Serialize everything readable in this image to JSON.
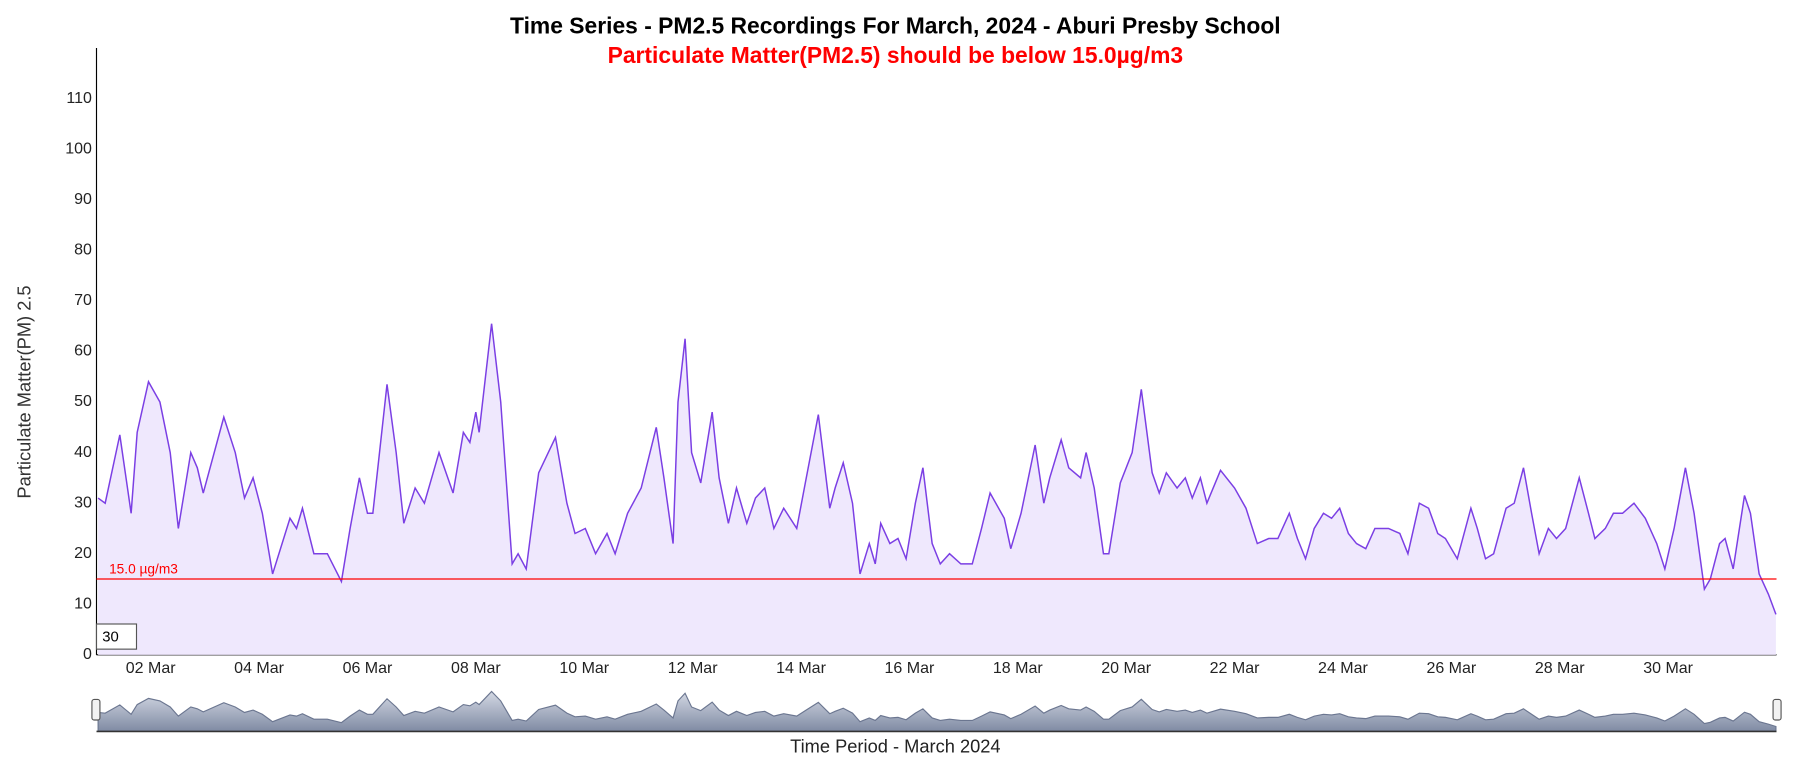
{
  "chart_data": {
    "type": "line",
    "title": "Time Series - PM2.5 Recordings For March, 2024 - Aburi Presby School",
    "subtitle": "Particulate Matter(PM2.5) should be below 15.0µg/m3",
    "ylabel": "Particulate Matter(PM) 2.5",
    "xlabel": "Time Period - March 2024",
    "color": "#7b3fe4",
    "fill": "#efe8fd",
    "grid": false,
    "threshold": {
      "value": 15,
      "label": "15.0 µg/m3",
      "color": "#ff0000"
    },
    "input_value": 30,
    "xlim": [
      1,
      32
    ],
    "xticks": [
      {
        "value": 2,
        "label": "02 Mar"
      },
      {
        "value": 4,
        "label": "04 Mar"
      },
      {
        "value": 6,
        "label": "06 Mar"
      },
      {
        "value": 8,
        "label": "08 Mar"
      },
      {
        "value": 10,
        "label": "10 Mar"
      },
      {
        "value": 12,
        "label": "12 Mar"
      },
      {
        "value": 14,
        "label": "14 Mar"
      },
      {
        "value": 16,
        "label": "16 Mar"
      },
      {
        "value": 18,
        "label": "18 Mar"
      },
      {
        "value": 20,
        "label": "20 Mar"
      },
      {
        "value": 22,
        "label": "22 Mar"
      },
      {
        "value": 24,
        "label": "24 Mar"
      },
      {
        "value": 26,
        "label": "26 Mar"
      },
      {
        "value": 28,
        "label": "28 Mar"
      },
      {
        "value": 30,
        "label": "30 Mar"
      }
    ],
    "ylim": [
      0,
      120
    ],
    "yticks": [
      0,
      10,
      20,
      30,
      40,
      50,
      60,
      70,
      80,
      90,
      100,
      110
    ],
    "x": [
      1.03,
      1.16,
      1.43,
      1.64,
      1.75,
      1.96,
      2.17,
      2.36,
      2.51,
      2.74,
      2.86,
      2.97,
      3.35,
      3.56,
      3.73,
      3.89,
      4.06,
      4.25,
      4.57,
      4.69,
      4.8,
      5.01,
      5.26,
      5.52,
      5.68,
      5.85,
      6.0,
      6.1,
      6.36,
      6.53,
      6.67,
      6.88,
      7.05,
      7.32,
      7.58,
      7.77,
      7.89,
      8.0,
      8.06,
      8.29,
      8.46,
      8.67,
      8.78,
      8.93,
      9.16,
      9.47,
      9.68,
      9.83,
      10.02,
      10.21,
      10.42,
      10.57,
      10.8,
      11.05,
      11.33,
      11.47,
      11.64,
      11.73,
      11.86,
      11.98,
      12.15,
      12.36,
      12.49,
      12.66,
      12.81,
      13.0,
      13.16,
      13.33,
      13.5,
      13.68,
      13.92,
      14.08,
      14.32,
      14.53,
      14.63,
      14.78,
      14.95,
      15.09,
      15.26,
      15.37,
      15.47,
      15.64,
      15.79,
      15.94,
      16.11,
      16.25,
      16.42,
      16.57,
      16.74,
      16.95,
      17.16,
      17.33,
      17.49,
      17.75,
      17.87,
      18.06,
      18.32,
      18.48,
      18.59,
      18.8,
      18.94,
      19.16,
      19.26,
      19.41,
      19.58,
      19.68,
      19.89,
      20.11,
      20.28,
      20.48,
      20.61,
      20.74,
      20.94,
      21.09,
      21.22,
      21.37,
      21.49,
      21.74,
      22.0,
      22.21,
      22.42,
      22.63,
      22.8,
      23.01,
      23.16,
      23.31,
      23.47,
      23.64,
      23.79,
      23.94,
      24.1,
      24.25,
      24.42,
      24.59,
      24.84,
      25.05,
      25.2,
      25.41,
      25.58,
      25.75,
      25.89,
      26.11,
      26.36,
      26.48,
      26.63,
      26.78,
      27.01,
      27.16,
      27.33,
      27.48,
      27.62,
      27.79,
      27.94,
      28.11,
      28.36,
      28.53,
      28.65,
      28.84,
      28.99,
      29.16,
      29.37,
      29.58,
      29.79,
      29.94,
      30.11,
      30.32,
      30.48,
      30.67,
      30.78,
      30.95,
      31.05,
      31.2,
      31.41,
      31.52,
      31.68,
      31.85,
      31.99
    ],
    "values": [
      31,
      30,
      43.5,
      28,
      44,
      54,
      50,
      40,
      25,
      40,
      37,
      32,
      47,
      40,
      31,
      35,
      28,
      16,
      27,
      25,
      29,
      20,
      20,
      14.5,
      25,
      35,
      28,
      28,
      53.5,
      40,
      26,
      33,
      30,
      40,
      32,
      44,
      42,
      48,
      44,
      65.5,
      50,
      18,
      20,
      17,
      36,
      43,
      30,
      24,
      25,
      20,
      24,
      20,
      28,
      33,
      45,
      35,
      22,
      50,
      62.5,
      40,
      34,
      48,
      35,
      26,
      33,
      26,
      31,
      33,
      25,
      29,
      25,
      34,
      47.5,
      29,
      33,
      38,
      30,
      16,
      22,
      18,
      26,
      22,
      23,
      19,
      30,
      37,
      22,
      18,
      20,
      18,
      18,
      25,
      32,
      27,
      21,
      28,
      41.5,
      30,
      35,
      42.5,
      37,
      35,
      40,
      33,
      20,
      20,
      34,
      40,
      52.5,
      36,
      32,
      36,
      33,
      35,
      31,
      35,
      30,
      36.5,
      33,
      29,
      22,
      23,
      23,
      28,
      23,
      19,
      25,
      28,
      27,
      29,
      24,
      22,
      21,
      25,
      25,
      24,
      20,
      30,
      29,
      24,
      23,
      19,
      29,
      25,
      19,
      20,
      29,
      30,
      37,
      28,
      20,
      25,
      23,
      25,
      35,
      28,
      23,
      25,
      28,
      28,
      30,
      27,
      22,
      17,
      25,
      37,
      28,
      13,
      15,
      22,
      23,
      17,
      31.5,
      28,
      16,
      12,
      8
    ]
  }
}
